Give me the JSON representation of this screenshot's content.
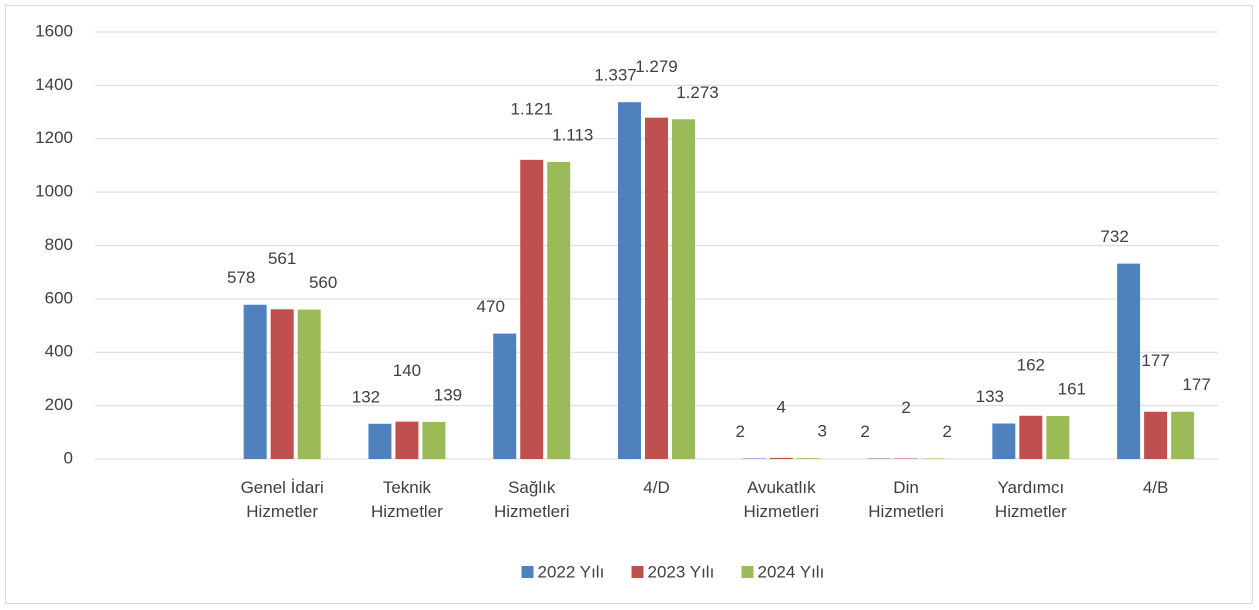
{
  "chart_data": {
    "type": "bar",
    "categories": [
      null,
      "Genel İdari\nHizmetler",
      "Teknik\nHizmetler",
      "Sağlık\nHizmetleri",
      "4/D",
      "Avukatlık\nHizmetleri",
      "Din\nHizmetleri",
      "Yardımcı\nHizmetler",
      "4/B"
    ],
    "series": [
      {
        "name": "2022 Yılı",
        "color": "#4f81bd",
        "values": [
          null,
          578,
          132,
          470,
          1337,
          2,
          2,
          133,
          732
        ],
        "value_labels": [
          null,
          "578",
          "132",
          "470",
          "1.337",
          "2",
          "2",
          "133",
          "732"
        ]
      },
      {
        "name": "2023 Yılı",
        "color": "#c0504d",
        "values": [
          null,
          561,
          140,
          1121,
          1279,
          4,
          2,
          162,
          177
        ],
        "value_labels": [
          null,
          "561",
          "140",
          "1.121",
          "1.279",
          "4",
          "2",
          "162",
          "177"
        ]
      },
      {
        "name": "2024 Yılı",
        "color": "#9bbb59",
        "values": [
          null,
          560,
          139,
          1113,
          1273,
          3,
          2,
          161,
          177
        ],
        "value_labels": [
          null,
          "560",
          "139",
          "1.113",
          "1.273",
          "3",
          "2",
          "161",
          "177"
        ]
      }
    ],
    "ylim": [
      0,
      1600
    ],
    "yticks": [
      0,
      200,
      400,
      600,
      800,
      1000,
      1200,
      1400,
      1600
    ],
    "grid": true,
    "legend": "bottom"
  }
}
